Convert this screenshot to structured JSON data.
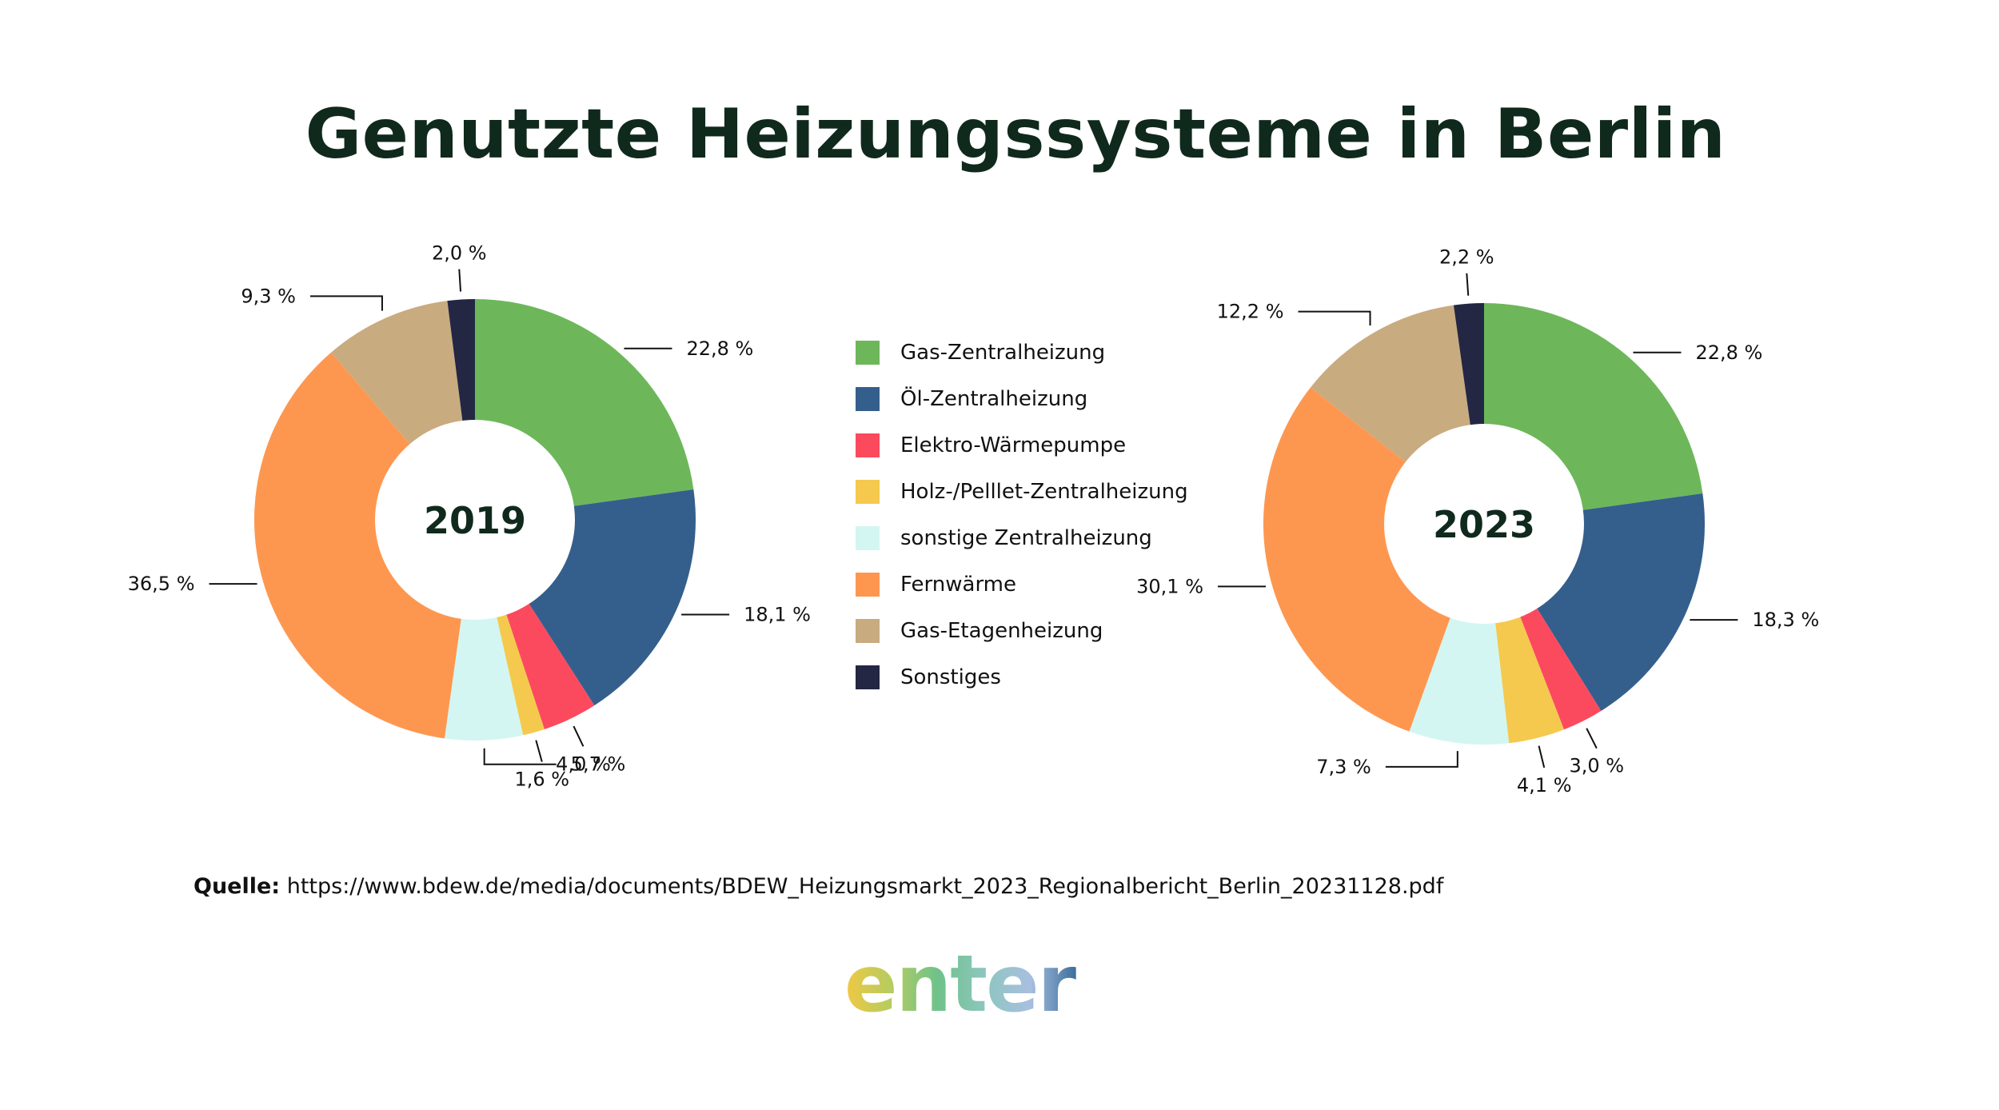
{
  "title": "Genutzte Heizungssysteme in Berlin",
  "legend": [
    {
      "label": "Gas-Zentralheizung",
      "color": "#6db75a"
    },
    {
      "label": "Öl-Zentralheizung",
      "color": "#345f8c"
    },
    {
      "label": "Elektro-Wärmepumpe",
      "color": "#fb4a5e"
    },
    {
      "label": "Holz-/Pelllet-Zentralheizung",
      "color": "#f5c94d"
    },
    {
      "label": "sonstige Zentralheizung",
      "color": "#d3f6f2"
    },
    {
      "label": "Fernwärme",
      "color": "#fd9750"
    },
    {
      "label": "Gas-Etagenheizung",
      "color": "#c9ab80"
    },
    {
      "label": "Sonstiges",
      "color": "#232744"
    }
  ],
  "chart_data": [
    {
      "type": "pie",
      "center_label": "2019",
      "categories": [
        "Gas-Zentralheizung",
        "Öl-Zentralheizung",
        "Elektro-Wärmepumpe",
        "Holz-/Pelllet-Zentralheizung",
        "sonstige Zentralheizung",
        "Fernwärme",
        "Gas-Etagenheizung",
        "Sonstiges"
      ],
      "values": [
        22.8,
        18.1,
        4.0,
        1.6,
        5.7,
        36.5,
        9.3,
        2.0
      ],
      "value_labels": [
        "22,8 %",
        "18,1 %",
        "4,0 %",
        "1,6 %",
        "5,7 %",
        "36,5 %",
        "9,3 %",
        "2,0 %"
      ]
    },
    {
      "type": "pie",
      "center_label": "2023",
      "categories": [
        "Gas-Zentralheizung",
        "Öl-Zentralheizung",
        "Elektro-Wärmepumpe",
        "Holz-/Pelllet-Zentralheizung",
        "sonstige Zentralheizung",
        "Fernwärme",
        "Gas-Etagenheizung",
        "Sonstiges"
      ],
      "values": [
        22.8,
        18.3,
        3.0,
        4.1,
        7.3,
        30.1,
        12.2,
        2.2
      ],
      "value_labels": [
        "22,8 %",
        "18,3 %",
        "3,0 %",
        "4,1 %",
        "7,3 %",
        "30,1 %",
        "12,2 %",
        "2,2 %"
      ]
    }
  ],
  "source": {
    "label": "Quelle:",
    "url": "https://www.bdew.de/media/documents/BDEW_Heizungsmarkt_2023_Regionalbericht_Berlin_20231128.pdf"
  },
  "logo": {
    "text": "enter",
    "colors": [
      "#f2c842",
      "#b5cc60",
      "#6fc28a",
      "#8cc6bd",
      "#a8bfe0",
      "#3a6d9a"
    ]
  }
}
